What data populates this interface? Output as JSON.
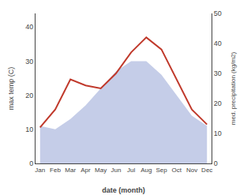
{
  "chart_data": {
    "type": "line",
    "xlabel": "date (month)",
    "ylabel": "max temp (C)",
    "y2label": "med. precipitation (kg/m2)",
    "categories": [
      "Jan",
      "Feb",
      "Mar",
      "Apr",
      "May",
      "Jun",
      "Jul",
      "Aug",
      "Sep",
      "Oct",
      "Nov",
      "Dec"
    ],
    "series": [
      {
        "type": "area",
        "color": "#c5cde8",
        "values": [
          11,
          10,
          13,
          17,
          22,
          27,
          30,
          30,
          26,
          20,
          14,
          11
        ]
      },
      {
        "type": "line",
        "color": "#c0392b",
        "axis": "y2",
        "values": [
          12,
          18,
          28,
          26,
          25,
          30,
          37,
          42,
          38,
          28,
          18,
          13
        ]
      }
    ],
    "ylim": [
      0,
      44
    ],
    "yticks": [
      0,
      10,
      20,
      30,
      40
    ],
    "y2lim": [
      0,
      50
    ],
    "y2ticks": [
      0,
      10,
      20,
      30,
      40,
      50
    ],
    "grid": false
  }
}
